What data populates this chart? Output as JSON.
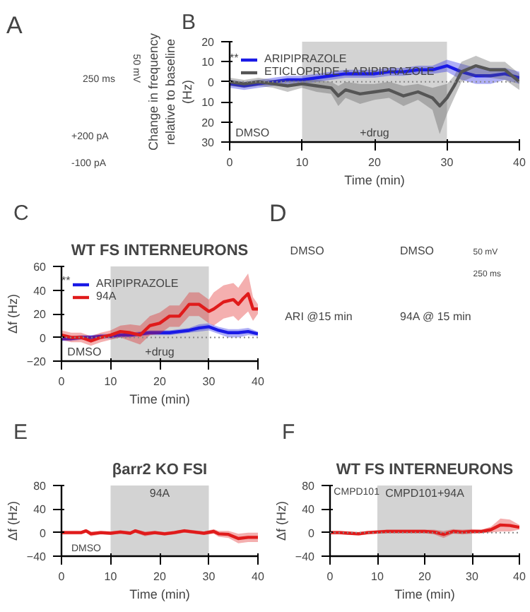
{
  "chart_data": [
    {
      "type": "other",
      "annotations": [
        "A",
        "50 mV",
        "250 ms",
        "+200 pA",
        "-100 pA"
      ]
    },
    {
      "type": "line",
      "xlabel": "Time (min)",
      "ylabel": "Change in frequency relative to baseline (Hz)",
      "xlim": [
        0,
        40
      ],
      "xticks": [
        0,
        10,
        20,
        30,
        40
      ],
      "ylim": [
        -30,
        20
      ],
      "yticks": [
        20,
        10,
        0,
        {
          "value": -10,
          "label": "10"
        },
        {
          "value": -20,
          "label": "20"
        },
        {
          "value": -30,
          "label": "30"
        }
      ],
      "legend": "top",
      "grid": false,
      "annotations": [
        "B",
        "**",
        "DMSO"
      ],
      "bands": [
        {
          "axis": "x",
          "from": 10,
          "to": 30,
          "label": "+drug",
          "color": "#d3d3d3"
        }
      ],
      "ref_lines": [
        {
          "axis": "y",
          "value": 0,
          "line_style": "dotted",
          "color": "#888888"
        }
      ],
      "series": [
        {
          "name": "ARIPIPRAZOLE",
          "color": "#1a1ae6",
          "x": [
            0,
            2,
            4,
            6,
            8,
            10,
            12,
            14,
            16,
            18,
            20,
            22,
            24,
            26,
            28,
            30,
            32,
            34,
            36,
            38,
            40
          ],
          "values": [
            -1,
            -2,
            -1,
            0,
            1,
            1,
            2,
            3,
            4,
            4,
            4,
            5,
            5,
            6,
            6,
            8,
            5,
            3,
            3,
            4,
            2
          ],
          "lower": [
            -3,
            -4,
            -3,
            -2,
            -1,
            -1,
            0,
            1,
            2,
            2,
            2,
            3,
            3,
            4,
            4,
            5,
            1,
            -1,
            -1,
            1,
            -1
          ],
          "upper": [
            1,
            0,
            1,
            2,
            3,
            3,
            4,
            5,
            6,
            6,
            6,
            7,
            7,
            8,
            8,
            11,
            9,
            7,
            7,
            7,
            5
          ]
        },
        {
          "name": "ETICLOPRIDE + ARIPIPRAZOLE",
          "color": "#555555",
          "x": [
            0,
            2,
            4,
            6,
            8,
            10,
            12,
            14,
            15,
            16,
            18,
            20,
            22,
            24,
            26,
            28,
            29,
            30,
            31,
            32,
            34,
            36,
            38,
            40
          ],
          "values": [
            0,
            -1,
            0,
            -1,
            -2,
            -1,
            -2,
            -3,
            -7,
            -4,
            -6,
            -5,
            -4,
            -7,
            -5,
            -8,
            -12,
            -8,
            -2,
            5,
            8,
            6,
            6,
            0
          ],
          "lower": [
            -2,
            -3,
            -2,
            -3,
            -5,
            -3,
            -5,
            -6,
            -12,
            -8,
            -11,
            -9,
            -8,
            -12,
            -9,
            -14,
            -26,
            -16,
            -8,
            0,
            3,
            2,
            1,
            -4
          ],
          "upper": [
            2,
            1,
            2,
            1,
            1,
            1,
            1,
            0,
            -2,
            0,
            -1,
            -1,
            0,
            -2,
            -1,
            -3,
            -2,
            -1,
            3,
            10,
            13,
            10,
            10,
            4
          ]
        }
      ]
    },
    {
      "type": "line",
      "title": "WT FS INTERNEURONS",
      "xlabel": "Time (min)",
      "ylabel": "Δf (Hz)",
      "xlim": [
        0,
        40
      ],
      "xticks": [
        0,
        10,
        20,
        30,
        40
      ],
      "ylim": [
        -20,
        60
      ],
      "yticks": [
        -20,
        0,
        20,
        40,
        60
      ],
      "legend": "top",
      "grid": false,
      "annotations": [
        "C",
        "**",
        "DMSO"
      ],
      "bands": [
        {
          "axis": "x",
          "from": 10,
          "to": 30,
          "label": "+drug",
          "color": "#d3d3d3"
        }
      ],
      "ref_lines": [
        {
          "axis": "y",
          "value": 0,
          "line_style": "dotted",
          "color": "#888888"
        }
      ],
      "series": [
        {
          "name": "ARIPIPRAZOLE",
          "color": "#1a1ae6",
          "x": [
            0,
            2,
            4,
            6,
            8,
            10,
            12,
            14,
            16,
            18,
            20,
            22,
            24,
            26,
            28,
            30,
            32,
            34,
            36,
            38,
            40
          ],
          "values": [
            -1,
            -1,
            0,
            0,
            1,
            1,
            2,
            2,
            3,
            4,
            4,
            4,
            5,
            6,
            8,
            9,
            6,
            4,
            4,
            5,
            3
          ],
          "lower": [
            -3,
            -3,
            -2,
            -2,
            -1,
            -1,
            0,
            0,
            1,
            2,
            2,
            2,
            3,
            4,
            5,
            6,
            3,
            0,
            0,
            2,
            1
          ],
          "upper": [
            1,
            1,
            2,
            2,
            3,
            3,
            4,
            4,
            5,
            6,
            6,
            6,
            7,
            8,
            11,
            12,
            9,
            7,
            7,
            8,
            5
          ]
        },
        {
          "name": "94A",
          "color": "#e01b1b",
          "x": [
            0,
            2,
            4,
            6,
            8,
            10,
            12,
            14,
            16,
            18,
            20,
            22,
            24,
            26,
            28,
            30,
            31,
            33,
            35,
            36,
            37,
            38,
            39,
            40
          ],
          "values": [
            2,
            0,
            0,
            -3,
            0,
            2,
            5,
            4,
            2,
            10,
            12,
            18,
            18,
            28,
            28,
            22,
            24,
            30,
            32,
            28,
            33,
            37,
            24,
            24
          ],
          "lower": [
            -2,
            -4,
            -4,
            -7,
            -4,
            -2,
            0,
            -3,
            -6,
            2,
            3,
            9,
            9,
            18,
            18,
            12,
            10,
            16,
            18,
            14,
            18,
            22,
            14,
            20
          ],
          "upper": [
            6,
            4,
            4,
            1,
            4,
            6,
            10,
            11,
            10,
            18,
            21,
            27,
            27,
            38,
            38,
            32,
            38,
            44,
            46,
            42,
            48,
            54,
            34,
            28
          ]
        }
      ]
    },
    {
      "type": "other",
      "annotations": [
        "D",
        "DMSO",
        "DMSO",
        "50 mV",
        "250 ms",
        "ARI @15 min",
        "94A @ 15 min"
      ]
    },
    {
      "type": "line",
      "title": "βarr2 KO FSI",
      "xlabel": "Time (min)",
      "ylabel": "Δf (Hz)",
      "xlim": [
        0,
        40
      ],
      "xticks": [
        0,
        10,
        20,
        30,
        40
      ],
      "ylim": [
        -40,
        80
      ],
      "yticks": [
        -40,
        0,
        40,
        80
      ],
      "grid": false,
      "annotations": [
        "E",
        "DMSO"
      ],
      "bands": [
        {
          "axis": "x",
          "from": 10,
          "to": 30,
          "label": "94A",
          "color": "#d3d3d3"
        }
      ],
      "series": [
        {
          "color": "#e01b1b",
          "x": [
            0,
            2,
            4,
            5,
            6,
            8,
            10,
            12,
            14,
            15,
            17,
            19,
            21,
            23,
            25,
            27,
            29,
            31,
            32,
            34,
            36,
            38,
            40
          ],
          "values": [
            0,
            0,
            0,
            3,
            -2,
            0,
            -1,
            1,
            -1,
            3,
            -2,
            0,
            -2,
            0,
            3,
            1,
            -1,
            2,
            -2,
            -3,
            -10,
            -8,
            -8
          ],
          "lower": [
            -3,
            -3,
            -3,
            0,
            -6,
            -3,
            -4,
            -2,
            -4,
            0,
            -6,
            -3,
            -5,
            -3,
            0,
            -2,
            -4,
            -2,
            -7,
            -9,
            -18,
            -16,
            -16
          ],
          "upper": [
            3,
            3,
            3,
            6,
            2,
            3,
            2,
            4,
            2,
            6,
            2,
            3,
            1,
            3,
            6,
            4,
            2,
            6,
            3,
            3,
            -2,
            0,
            0
          ]
        }
      ]
    },
    {
      "type": "line",
      "title": "WT FS INTERNEURONS",
      "xlabel": "Time (min)",
      "ylabel": "Δf (Hz)",
      "xlim": [
        0,
        40
      ],
      "xticks": [
        0,
        10,
        20,
        30,
        40
      ],
      "ylim": [
        -40,
        80
      ],
      "yticks": [
        -40,
        0,
        40,
        80
      ],
      "grid": false,
      "annotations": [
        "F",
        "CMPD101"
      ],
      "bands": [
        {
          "axis": "x",
          "from": 10,
          "to": 30,
          "label": "CMPD101+94A",
          "color": "#d3d3d3"
        }
      ],
      "ref_lines": [
        {
          "axis": "y",
          "value": 0,
          "line_style": "dotted",
          "color": "#888888"
        }
      ],
      "series": [
        {
          "color": "#e01b1b",
          "x": [
            0,
            2,
            4,
            6,
            8,
            10,
            12,
            14,
            16,
            18,
            20,
            22,
            24,
            26,
            28,
            30,
            32,
            34,
            36,
            38,
            40
          ],
          "values": [
            0,
            0,
            -1,
            -2,
            0,
            1,
            2,
            2,
            2,
            2,
            2,
            1,
            -3,
            2,
            1,
            2,
            2,
            5,
            13,
            12,
            9
          ],
          "lower": [
            -3,
            -3,
            -4,
            -5,
            -3,
            -2,
            -1,
            -1,
            -1,
            -1,
            -1,
            -3,
            -9,
            -2,
            -3,
            -2,
            -1,
            0,
            2,
            2,
            5
          ],
          "upper": [
            3,
            3,
            2,
            1,
            3,
            4,
            5,
            5,
            5,
            5,
            5,
            5,
            3,
            6,
            5,
            6,
            5,
            10,
            24,
            22,
            13
          ]
        }
      ]
    }
  ]
}
